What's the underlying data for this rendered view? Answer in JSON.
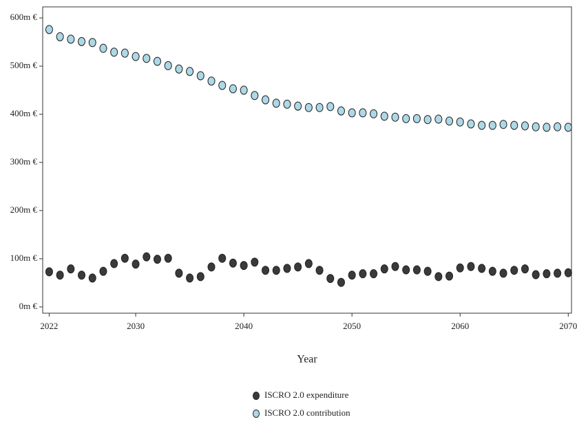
{
  "chart_data": {
    "type": "scatter",
    "x_label": "Year",
    "x": [
      2022,
      2023,
      2024,
      2025,
      2026,
      2027,
      2028,
      2029,
      2030,
      2031,
      2032,
      2033,
      2034,
      2035,
      2036,
      2037,
      2038,
      2039,
      2040,
      2041,
      2042,
      2043,
      2044,
      2045,
      2046,
      2047,
      2048,
      2049,
      2050,
      2051,
      2052,
      2053,
      2054,
      2055,
      2056,
      2057,
      2058,
      2059,
      2060,
      2061,
      2062,
      2063,
      2064,
      2065,
      2066,
      2067,
      2068,
      2069,
      2070
    ],
    "series": [
      {
        "name": "ISCRO 2.0 expenditure",
        "color": "#3a3a3a",
        "values": [
          73,
          66,
          79,
          66,
          60,
          74,
          90,
          101,
          89,
          104,
          99,
          101,
          70,
          60,
          63,
          83,
          101,
          91,
          86,
          93,
          76,
          76,
          80,
          83,
          90,
          76,
          59,
          51,
          66,
          69,
          69,
          79,
          84,
          77,
          77,
          74,
          63,
          64,
          81,
          84,
          80,
          74,
          70,
          76,
          79,
          67,
          69,
          70,
          71
        ]
      },
      {
        "name": "ISCRO 2.0 contribution",
        "color": "#add8e6",
        "values": [
          576,
          561,
          556,
          551,
          549,
          537,
          529,
          527,
          520,
          516,
          510,
          501,
          494,
          489,
          480,
          469,
          460,
          453,
          450,
          439,
          430,
          423,
          421,
          417,
          414,
          414,
          416,
          407,
          403,
          403,
          401,
          396,
          394,
          391,
          391,
          389,
          390,
          386,
          384,
          380,
          377,
          377,
          379,
          377,
          376,
          374,
          373,
          374,
          373
        ]
      }
    ],
    "xlim": [
      2021.4,
      2070.3
    ],
    "xticks": [
      2022,
      2030,
      2040,
      2050,
      2060,
      2070
    ],
    "ylim": [
      -13,
      623
    ],
    "yticks": [
      {
        "value": 0,
        "label": "0m €"
      },
      {
        "value": 100,
        "label": "100m €"
      },
      {
        "value": 200,
        "label": "200m €"
      },
      {
        "value": 300,
        "label": "300m €"
      },
      {
        "value": 400,
        "label": "400m €"
      },
      {
        "value": 500,
        "label": "500m €"
      },
      {
        "value": 600,
        "label": "600m €"
      }
    ],
    "legend": "bottom"
  }
}
